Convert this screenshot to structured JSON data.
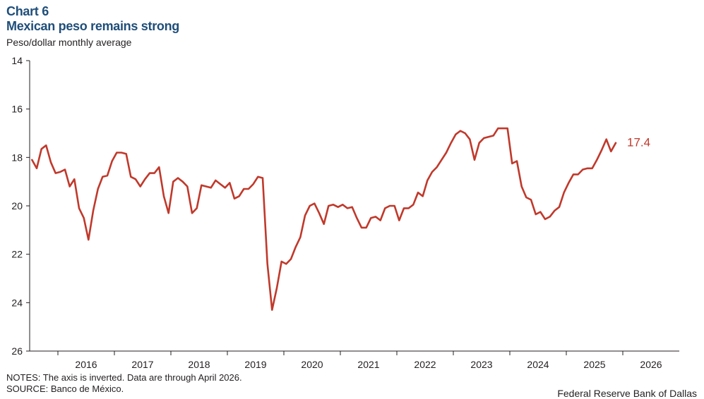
{
  "header": {
    "chart_number": "Chart 6",
    "title": "Mexican peso remains strong",
    "subtitle": "Peso/dollar monthly  average"
  },
  "notes": {
    "line1": "NOTES: The axis is inverted. Data are through April 2026.",
    "line2": "SOURCE: Banco de México."
  },
  "credit": "Federal Reserve Bank of Dallas",
  "chart_data": {
    "type": "line",
    "title": "Mexican peso remains strong",
    "ylabel": "Peso/dollar monthly  average",
    "y_inverted": true,
    "ylim": [
      14,
      26
    ],
    "yticks": [
      14,
      16,
      18,
      20,
      22,
      24,
      26
    ],
    "xlim": [
      "2015-07",
      "2026-12"
    ],
    "xtick_labels": [
      "2016",
      "2017",
      "2018",
      "2019",
      "2020",
      "2021",
      "2022",
      "2023",
      "2024",
      "2025",
      "2026"
    ],
    "grid": false,
    "color": "#c0392b",
    "end_label": "17.4",
    "series": [
      {
        "start": "2015-07",
        "values": [
          18.1,
          18.45,
          17.65,
          17.5,
          18.2,
          18.65,
          18.6,
          18.5,
          19.2,
          18.9,
          20.1,
          20.5,
          21.4,
          20.2,
          19.3,
          18.8,
          18.75,
          18.15,
          17.8,
          17.8,
          17.85,
          18.8,
          18.9,
          19.2,
          18.9,
          18.65,
          18.65,
          18.4,
          19.6,
          20.3,
          19.0,
          18.85,
          19.0,
          19.2,
          20.3,
          20.1,
          19.15,
          19.2,
          19.25,
          18.95,
          19.1,
          19.25,
          19.05,
          19.7,
          19.6,
          19.3,
          19.3,
          19.1,
          18.8,
          18.85,
          22.4,
          24.3,
          23.4,
          22.3,
          22.4,
          22.2,
          21.7,
          21.3,
          20.4,
          20.0,
          19.9,
          20.3,
          20.75,
          20.0,
          19.95,
          20.05,
          19.95,
          20.1,
          20.05,
          20.5,
          20.9,
          20.9,
          20.5,
          20.45,
          20.6,
          20.1,
          20.0,
          20.0,
          20.6,
          20.1,
          20.1,
          19.95,
          19.45,
          19.6,
          18.95,
          18.6,
          18.4,
          18.1,
          17.8,
          17.4,
          17.05,
          16.9,
          17.0,
          17.25,
          18.1,
          17.4,
          17.2,
          17.15,
          17.1,
          16.8,
          16.8,
          16.8,
          18.25,
          18.15,
          19.2,
          19.65,
          19.75,
          20.35,
          20.25,
          20.55,
          20.45,
          20.2,
          20.05,
          19.45,
          19.05,
          18.7,
          18.7,
          18.5,
          18.45,
          18.45,
          18.1,
          17.7,
          17.25,
          17.75,
          17.4
        ]
      }
    ]
  }
}
